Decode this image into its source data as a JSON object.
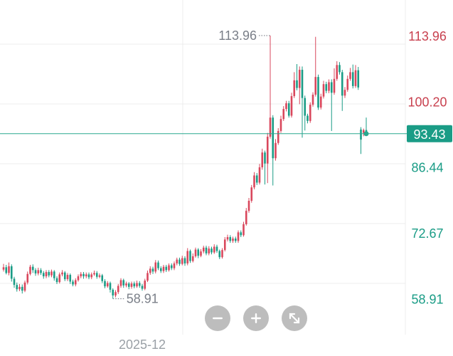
{
  "colors": {
    "up": "#d9475c",
    "down": "#1a9c86",
    "grid": "#ececec",
    "current_line": "#2aa88f",
    "current_badge": "#1a9c86",
    "high_low_text": "#7a7f88",
    "axis_date_text": "#9aa0a6",
    "button_bg": "#bdbdbd"
  },
  "controls": {
    "zoom_out_icon": "minus-icon",
    "zoom_in_icon": "plus-icon",
    "fullscreen_icon": "expand-icon"
  },
  "chart_data": {
    "type": "candlestick",
    "ylim": [
      51.4,
      121.4
    ],
    "price_labels": [
      {
        "text": "113.96",
        "value": 113.96,
        "color": "#c8414f"
      },
      {
        "text": "100.20",
        "value": 100.2,
        "color": "#c8414f"
      },
      {
        "text": "86.44",
        "value": 86.44,
        "color": "#1a9c86"
      },
      {
        "text": "72.67",
        "value": 72.67,
        "color": "#1a9c86"
      },
      {
        "text": "58.91",
        "value": 58.91,
        "color": "#1a9c86"
      }
    ],
    "current_price": {
      "text": "93.43",
      "value": 93.43
    },
    "high_marker": {
      "text": "113.96",
      "value": 113.96
    },
    "low_marker": {
      "text": "58.91",
      "value": 58.91
    },
    "x_labels": [
      {
        "text": "2025-12",
        "candle_index": 52
      }
    ],
    "candles": [
      [
        65.0,
        65.5,
        66.2,
        64.6
      ],
      [
        65.5,
        64.3,
        66.0,
        64.0
      ],
      [
        64.3,
        65.7,
        66.5,
        63.8
      ],
      [
        65.7,
        63.1,
        66.1,
        62.5
      ],
      [
        63.1,
        61.8,
        63.5,
        61.2
      ],
      [
        61.8,
        60.9,
        62.3,
        60.4
      ],
      [
        60.9,
        61.4,
        62.0,
        60.5
      ],
      [
        61.4,
        60.6,
        61.9,
        60.0
      ],
      [
        60.6,
        62.3,
        62.7,
        60.3
      ],
      [
        62.3,
        64.1,
        64.6,
        61.9
      ],
      [
        64.1,
        65.6,
        66.0,
        63.8
      ],
      [
        65.6,
        64.9,
        66.1,
        64.3
      ],
      [
        64.9,
        64.2,
        65.3,
        63.7
      ],
      [
        64.2,
        64.9,
        65.4,
        63.8
      ],
      [
        64.9,
        64.3,
        65.3,
        63.9
      ],
      [
        64.3,
        63.6,
        64.7,
        63.1
      ],
      [
        63.6,
        64.5,
        64.9,
        63.2
      ],
      [
        64.5,
        63.8,
        64.9,
        63.4
      ],
      [
        63.8,
        64.6,
        65.0,
        63.4
      ],
      [
        64.6,
        63.2,
        64.9,
        62.7
      ],
      [
        63.2,
        62.4,
        63.6,
        62.0
      ],
      [
        62.4,
        64.0,
        64.4,
        62.1
      ],
      [
        64.0,
        64.4,
        64.9,
        63.6
      ],
      [
        64.4,
        63.0,
        64.7,
        62.6
      ],
      [
        63.0,
        63.9,
        64.3,
        62.6
      ],
      [
        63.9,
        62.5,
        64.2,
        62.0
      ],
      [
        62.5,
        61.9,
        62.9,
        61.5
      ],
      [
        61.9,
        62.8,
        63.2,
        61.5
      ],
      [
        62.8,
        63.6,
        64.0,
        62.5
      ],
      [
        63.6,
        64.1,
        64.5,
        63.2
      ],
      [
        64.1,
        63.6,
        64.5,
        63.1
      ],
      [
        63.6,
        64.0,
        64.4,
        63.2
      ],
      [
        64.0,
        63.4,
        64.4,
        63.0
      ],
      [
        63.4,
        64.0,
        64.4,
        63.0
      ],
      [
        64.0,
        64.3,
        64.8,
        63.7
      ],
      [
        64.3,
        63.5,
        64.7,
        63.1
      ],
      [
        63.5,
        63.8,
        64.2,
        63.2
      ],
      [
        63.8,
        62.6,
        64.1,
        62.2
      ],
      [
        62.6,
        61.5,
        63.0,
        61.1
      ],
      [
        61.5,
        62.2,
        62.6,
        61.2
      ],
      [
        62.2,
        60.8,
        62.5,
        60.2
      ],
      [
        60.8,
        59.6,
        61.1,
        58.91
      ],
      [
        59.6,
        60.3,
        60.7,
        59.2
      ],
      [
        60.3,
        61.6,
        62.0,
        59.9
      ],
      [
        61.6,
        62.8,
        63.2,
        61.2
      ],
      [
        62.8,
        61.7,
        63.1,
        61.2
      ],
      [
        61.7,
        62.1,
        62.5,
        61.3
      ],
      [
        62.1,
        61.4,
        62.4,
        60.9
      ],
      [
        61.4,
        62.1,
        62.5,
        61.0
      ],
      [
        62.1,
        61.5,
        62.5,
        61.1
      ],
      [
        61.5,
        62.2,
        62.7,
        61.2
      ],
      [
        62.2,
        61.6,
        62.6,
        61.2
      ],
      [
        61.6,
        61.0,
        62.0,
        60.6
      ],
      [
        61.0,
        62.7,
        63.1,
        60.7
      ],
      [
        62.7,
        64.3,
        64.8,
        62.4
      ],
      [
        64.3,
        65.2,
        65.7,
        63.9
      ],
      [
        65.2,
        64.6,
        65.6,
        64.1
      ],
      [
        64.6,
        66.5,
        67.0,
        64.2
      ],
      [
        66.5,
        65.3,
        66.9,
        64.9
      ],
      [
        65.3,
        64.7,
        65.7,
        64.3
      ],
      [
        64.7,
        65.6,
        66.0,
        64.3
      ],
      [
        65.6,
        64.9,
        66.0,
        64.5
      ],
      [
        64.9,
        65.9,
        66.3,
        64.6
      ],
      [
        65.9,
        65.3,
        66.3,
        64.9
      ],
      [
        65.3,
        66.3,
        66.7,
        64.9
      ],
      [
        66.3,
        67.1,
        67.5,
        65.9
      ],
      [
        67.1,
        66.2,
        67.5,
        65.8
      ],
      [
        66.2,
        67.4,
        67.9,
        65.9
      ],
      [
        67.4,
        66.3,
        67.8,
        65.8
      ],
      [
        66.3,
        68.9,
        69.5,
        65.9
      ],
      [
        68.9,
        66.8,
        69.2,
        66.4
      ],
      [
        66.8,
        67.8,
        68.4,
        66.5
      ],
      [
        67.8,
        69.2,
        69.6,
        67.5
      ],
      [
        69.2,
        67.9,
        69.5,
        67.4
      ],
      [
        67.9,
        68.8,
        69.3,
        67.6
      ],
      [
        68.8,
        69.6,
        70.0,
        68.4
      ],
      [
        69.6,
        68.4,
        70.0,
        68.0
      ],
      [
        68.4,
        69.4,
        69.9,
        68.0
      ],
      [
        69.4,
        68.6,
        69.8,
        68.2
      ],
      [
        68.6,
        69.8,
        70.3,
        68.3
      ],
      [
        69.8,
        68.9,
        70.2,
        68.5
      ],
      [
        68.9,
        67.6,
        69.2,
        67.2
      ],
      [
        67.6,
        69.1,
        69.5,
        67.3
      ],
      [
        69.1,
        71.3,
        71.8,
        68.8
      ],
      [
        71.3,
        71.8,
        72.3,
        70.9
      ],
      [
        71.8,
        71.0,
        72.2,
        70.6
      ],
      [
        71.0,
        71.5,
        71.9,
        70.6
      ],
      [
        71.5,
        71.0,
        71.9,
        70.6
      ],
      [
        71.0,
        72.8,
        73.2,
        70.6
      ],
      [
        72.8,
        72.2,
        73.2,
        71.8
      ],
      [
        72.2,
        74.5,
        75.0,
        71.9
      ],
      [
        74.5,
        77.3,
        77.9,
        74.2
      ],
      [
        77.3,
        79.4,
        80.0,
        76.9
      ],
      [
        79.4,
        82.2,
        82.7,
        79.0
      ],
      [
        82.2,
        84.7,
        85.4,
        81.8
      ],
      [
        84.7,
        83.2,
        85.2,
        82.7
      ],
      [
        83.2,
        86.4,
        87.1,
        82.8
      ],
      [
        86.4,
        89.5,
        90.3,
        85.9
      ],
      [
        89.5,
        87.2,
        89.9,
        82.8
      ],
      [
        87.2,
        92.8,
        93.6,
        83.1
      ],
      [
        92.8,
        96.8,
        113.96,
        92.4
      ],
      [
        96.8,
        88.3,
        97.3,
        82.6
      ],
      [
        88.3,
        91.5,
        92.3,
        87.8
      ],
      [
        91.5,
        94.0,
        94.6,
        91.1
      ],
      [
        94.0,
        96.5,
        97.2,
        93.6
      ],
      [
        96.5,
        98.6,
        99.2,
        96.1
      ],
      [
        98.6,
        99.8,
        100.3,
        98.1
      ],
      [
        99.8,
        97.2,
        100.3,
        96.8
      ],
      [
        97.2,
        101.3,
        102.0,
        96.8
      ],
      [
        101.3,
        104.6,
        106.3,
        100.9
      ],
      [
        104.6,
        103.0,
        108.0,
        102.5
      ],
      [
        103.0,
        106.8,
        107.5,
        99.6
      ],
      [
        106.8,
        100.9,
        107.5,
        92.6
      ],
      [
        100.9,
        97.2,
        101.4,
        94.1
      ],
      [
        97.2,
        96.1,
        97.6,
        95.6
      ],
      [
        96.1,
        99.5,
        100.0,
        95.7
      ],
      [
        99.5,
        101.6,
        102.1,
        99.1
      ],
      [
        101.6,
        105.3,
        113.7,
        101.2
      ],
      [
        105.3,
        98.9,
        105.8,
        98.4
      ],
      [
        98.9,
        101.2,
        101.8,
        98.5
      ],
      [
        101.2,
        103.8,
        104.5,
        100.8
      ],
      [
        103.8,
        102.4,
        104.3,
        101.9
      ],
      [
        102.4,
        104.2,
        104.8,
        101.9
      ],
      [
        104.2,
        102.0,
        104.8,
        94.0
      ],
      [
        102.0,
        104.9,
        107.1,
        101.6
      ],
      [
        104.9,
        107.8,
        108.6,
        104.5
      ],
      [
        107.8,
        106.3,
        108.4,
        105.8
      ],
      [
        106.3,
        101.4,
        106.8,
        98.2
      ],
      [
        101.4,
        102.6,
        103.2,
        100.9
      ],
      [
        102.6,
        104.9,
        105.6,
        102.2
      ],
      [
        104.9,
        106.3,
        107.2,
        104.5
      ],
      [
        106.3,
        103.4,
        107.9,
        102.9
      ],
      [
        103.4,
        106.7,
        107.8,
        103.0
      ],
      [
        106.7,
        103.1,
        107.4,
        102.6
      ],
      [
        94.3,
        92.2,
        94.8,
        89.2
      ],
      [
        93.6,
        94.2,
        94.5,
        92.9
      ],
      [
        94.2,
        93.43,
        96.8,
        93.1
      ]
    ]
  }
}
